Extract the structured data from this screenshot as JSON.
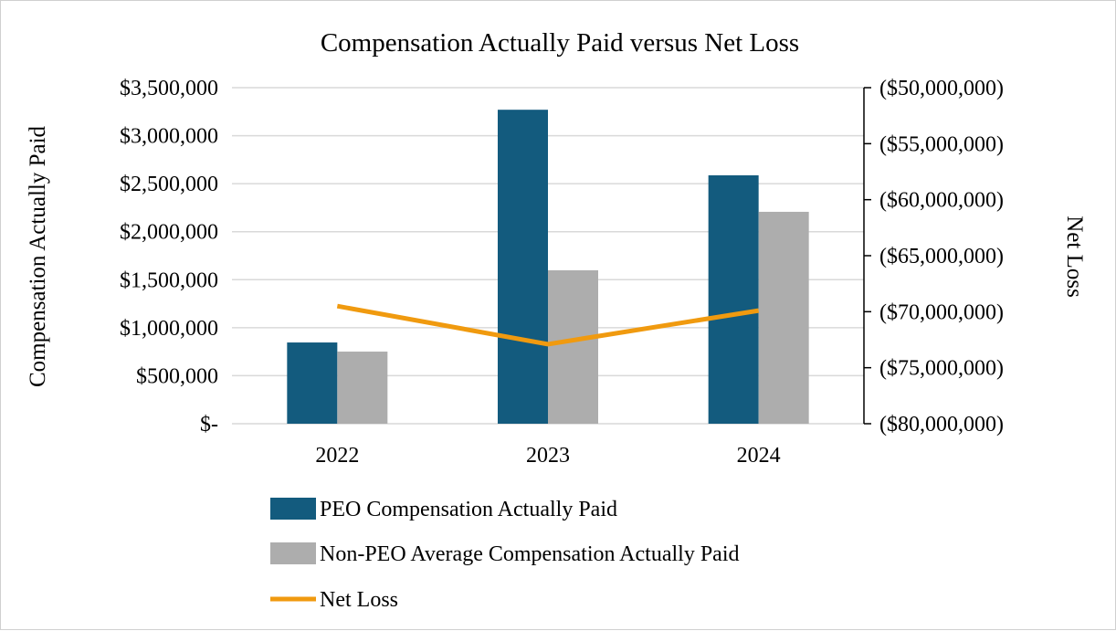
{
  "chart_data": {
    "type": "bar",
    "title": "Compensation Actually Paid versus Net Loss",
    "categories": [
      "2022",
      "2023",
      "2024"
    ],
    "ylabel": "Compensation Actually Paid",
    "y2label": "Net Loss",
    "ylim": [
      0,
      3500000
    ],
    "y2lim": [
      -80000000,
      -50000000
    ],
    "yticks": [
      {
        "value": 0,
        "label": "$-"
      },
      {
        "value": 500000,
        "label": "$500,000"
      },
      {
        "value": 1000000,
        "label": "$1,000,000"
      },
      {
        "value": 1500000,
        "label": "$1,500,000"
      },
      {
        "value": 2000000,
        "label": "$2,000,000"
      },
      {
        "value": 2500000,
        "label": "$2,500,000"
      },
      {
        "value": 3000000,
        "label": "$3,000,000"
      },
      {
        "value": 3500000,
        "label": "$3,500,000"
      }
    ],
    "y2ticks": [
      {
        "value": -50000000,
        "label": "($50,000,000)"
      },
      {
        "value": -55000000,
        "label": "($55,000,000)"
      },
      {
        "value": -60000000,
        "label": "($60,000,000)"
      },
      {
        "value": -65000000,
        "label": "($65,000,000)"
      },
      {
        "value": -70000000,
        "label": "($70,000,000)"
      },
      {
        "value": -75000000,
        "label": "($75,000,000)"
      },
      {
        "value": -80000000,
        "label": "($80,000,000)"
      }
    ],
    "grid": true,
    "legend_position": "bottom-left",
    "series": [
      {
        "name": "PEO Compensation Actually Paid",
        "kind": "bar",
        "axis": "left",
        "color": "#135b7e",
        "values": [
          846000,
          3270000,
          2587000
        ]
      },
      {
        "name": "Non-PEO Average Compensation Actually Paid",
        "kind": "bar",
        "axis": "left",
        "color": "#adadad",
        "values": [
          751000,
          1598000,
          2207000
        ]
      },
      {
        "name": "Net Loss",
        "kind": "line",
        "axis": "right",
        "color": "#f09a0f",
        "values": [
          -69500000,
          -72900000,
          -69900000
        ]
      }
    ]
  }
}
